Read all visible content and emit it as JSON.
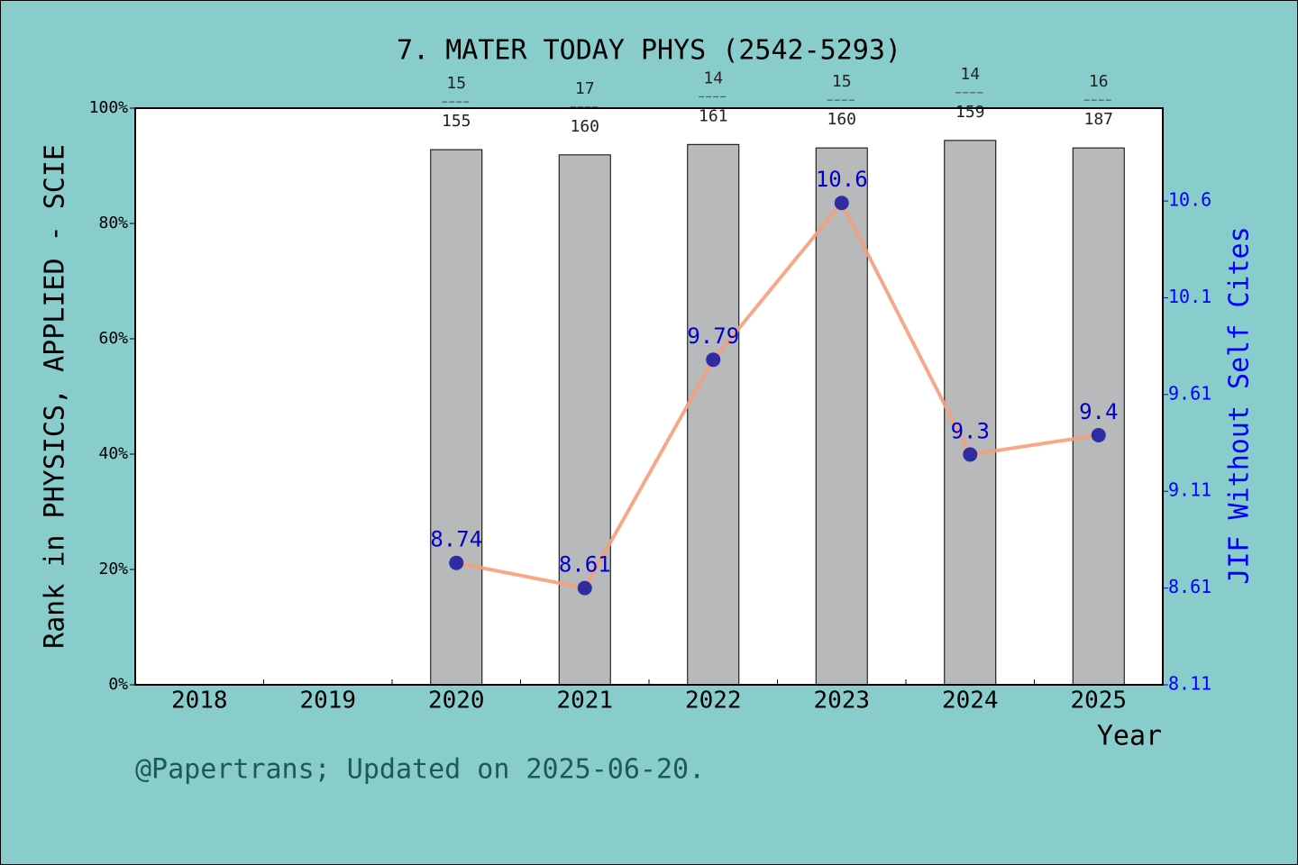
{
  "chart_data": {
    "type": "bar_line",
    "title": "7. MATER TODAY PHYS (2542-5293)",
    "xlabel": "Year",
    "ylabel": "Rank in PHYSICS, APPLIED - SCIE",
    "y2label": "JIF Without Self Cites",
    "footer": "@Papertrans; Updated on 2025-06-20.",
    "categories": [
      "2018",
      "2019",
      "2020",
      "2021",
      "2022",
      "2023",
      "2024",
      "2025"
    ],
    "series": [
      {
        "name": "Rank",
        "color": "#b8b9bb",
        "values": [
          null,
          null,
          92.8,
          91.9,
          93.7,
          93.1,
          94.4,
          93.1
        ],
        "ranks": [
          null,
          null,
          15,
          17,
          14,
          15,
          14,
          16
        ],
        "totals": [
          null,
          null,
          155,
          160,
          161,
          160,
          159,
          187
        ]
      },
      {
        "name": "JIF Without Self Cites",
        "color": "#f4a07c",
        "marker_color": "#1414a0",
        "label_color": "#0000cc",
        "axis": "y2",
        "values": [
          null,
          null,
          8.74,
          8.61,
          9.79,
          10.6,
          9.3,
          9.4
        ]
      }
    ],
    "ylim": [
      0,
      100
    ],
    "yticks": [
      {
        "value": 0,
        "label": "0%"
      },
      {
        "value": 20,
        "label": "20%"
      },
      {
        "value": 40,
        "label": "40%"
      },
      {
        "value": 60,
        "label": "60%"
      },
      {
        "value": 80,
        "label": "80%"
      },
      {
        "value": 100,
        "label": "100%"
      }
    ],
    "y2lim": [
      8.11,
      11.09
    ],
    "y2ticks": [
      8.11,
      8.61,
      9.11,
      9.61,
      {
        "value": 10.11,
        "label": "10.1"
      },
      {
        "value": 10.61,
        "label": "10.6"
      }
    ],
    "y2color": "#0000ff"
  }
}
